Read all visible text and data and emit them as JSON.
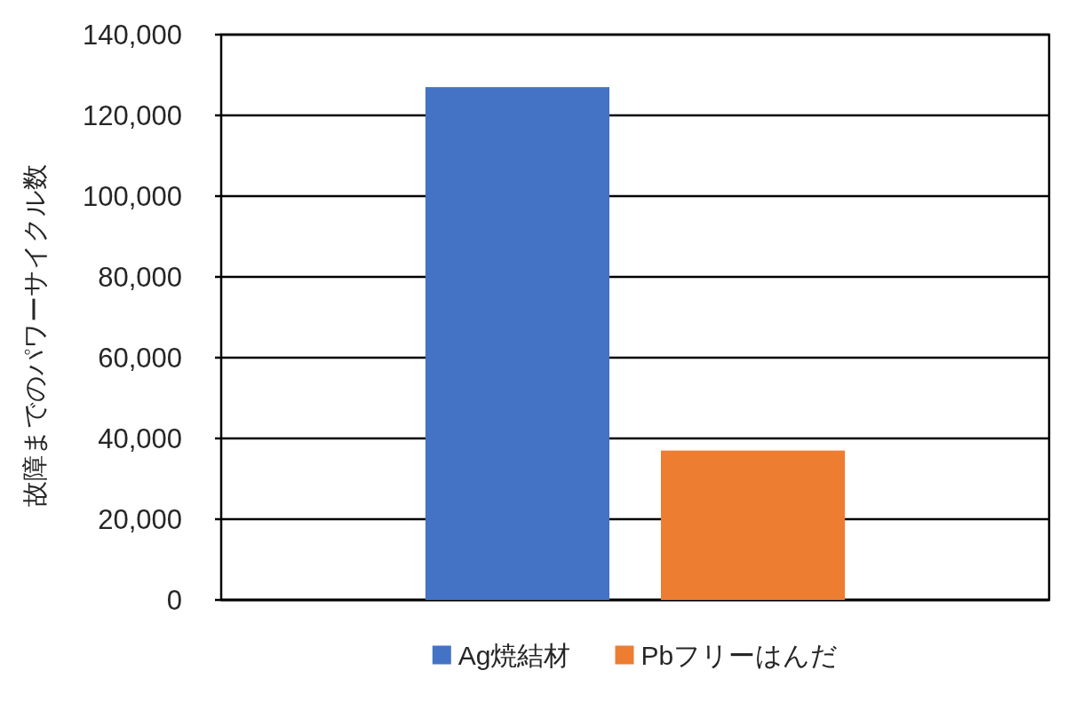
{
  "chart_data": {
    "type": "bar",
    "ylabel": "故障までのパワーサイクル数",
    "categories": [
      null
    ],
    "series": [
      {
        "name": "Ag焼結材",
        "color": "#4472c4",
        "values": [
          127000
        ]
      },
      {
        "name": "Pbフリーはんだ",
        "color": "#ed7d31",
        "values": [
          37000
        ]
      }
    ],
    "ylim": [
      0,
      140000
    ],
    "yticks": [
      {
        "value": 0,
        "label": "0"
      },
      {
        "value": 20000,
        "label": "20,000"
      },
      {
        "value": 40000,
        "label": "40,000"
      },
      {
        "value": 60000,
        "label": "60,000"
      },
      {
        "value": 80000,
        "label": "80,000"
      },
      {
        "value": 100000,
        "label": "100,000"
      },
      {
        "value": 120000,
        "label": "120,000"
      },
      {
        "value": 140000,
        "label": "140,000"
      }
    ],
    "grid": "y",
    "legend": "bottom",
    "tick_labels": "y"
  }
}
